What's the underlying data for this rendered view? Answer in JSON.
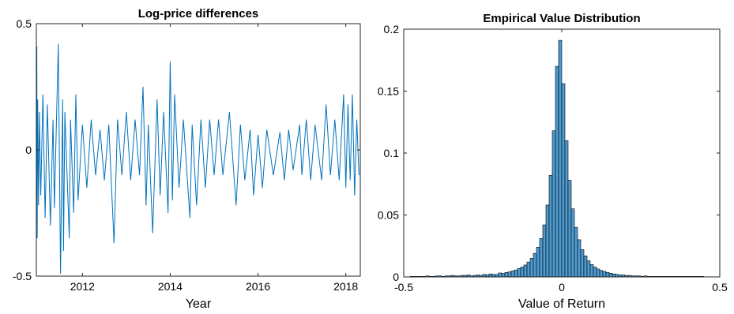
{
  "chart_data": [
    {
      "type": "line",
      "title": "Log-price differences",
      "xlabel": "Year",
      "ylabel": "",
      "xlim": [
        2010.95,
        2018.33
      ],
      "ylim": [
        -0.5,
        0.5
      ],
      "x_ticks": [
        2012,
        2014,
        2016,
        2018
      ],
      "y_ticks": [
        -0.5,
        0,
        0.5
      ],
      "x_tick_labels": [
        "2012",
        "2014",
        "2016",
        "2018"
      ],
      "y_tick_labels": [
        "-0.5",
        "0",
        "0.5"
      ],
      "grid": false,
      "color": "#0072BD",
      "series": [
        {
          "x": [
            2010.96,
            2010.97,
            2010.98,
            2011.0,
            2011.02,
            2011.05,
            2011.1,
            2011.15,
            2011.2,
            2011.27,
            2011.33,
            2011.36,
            2011.45,
            2011.5,
            2011.55,
            2011.57,
            2011.6,
            2011.7,
            2011.73,
            2011.8,
            2011.85,
            2011.9,
            2012.0,
            2012.1,
            2012.2,
            2012.3,
            2012.4,
            2012.5,
            2012.6,
            2012.72,
            2012.8,
            2012.9,
            2013.0,
            2013.1,
            2013.2,
            2013.3,
            2013.38,
            2013.45,
            2013.5,
            2013.6,
            2013.7,
            2013.77,
            2013.85,
            2013.95,
            2014.0,
            2014.05,
            2014.1,
            2014.2,
            2014.3,
            2014.45,
            2014.5,
            2014.6,
            2014.7,
            2014.8,
            2014.9,
            2015.0,
            2015.1,
            2015.2,
            2015.35,
            2015.5,
            2015.6,
            2015.7,
            2015.82,
            2015.9,
            2016.0,
            2016.1,
            2016.2,
            2016.35,
            2016.5,
            2016.6,
            2016.7,
            2016.8,
            2016.95,
            2017.0,
            2017.1,
            2017.2,
            2017.3,
            2017.45,
            2017.55,
            2017.65,
            2017.75,
            2017.85,
            2017.95,
            2018.0,
            2018.05,
            2018.1,
            2018.15,
            2018.2,
            2018.25,
            2018.3
          ],
          "y": [
            0.41,
            -0.35,
            0.2,
            -0.22,
            0.15,
            -0.18,
            0.22,
            -0.27,
            0.18,
            -0.3,
            0.12,
            -0.23,
            0.42,
            -0.49,
            0.2,
            -0.4,
            0.15,
            -0.35,
            0.12,
            -0.25,
            0.22,
            -0.2,
            0.1,
            -0.15,
            0.12,
            -0.1,
            0.08,
            -0.12,
            0.1,
            -0.37,
            0.12,
            -0.1,
            0.15,
            -0.12,
            0.12,
            -0.1,
            0.25,
            -0.22,
            0.1,
            -0.33,
            0.2,
            -0.18,
            0.15,
            -0.25,
            0.35,
            -0.2,
            0.22,
            -0.15,
            0.12,
            -0.27,
            0.1,
            -0.22,
            0.12,
            -0.15,
            0.12,
            -0.1,
            0.12,
            -0.1,
            0.15,
            -0.22,
            0.1,
            -0.12,
            0.08,
            -0.18,
            0.06,
            -0.15,
            0.08,
            -0.1,
            0.07,
            -0.12,
            0.08,
            -0.08,
            0.1,
            -0.1,
            0.12,
            -0.12,
            0.1,
            -0.12,
            0.18,
            -0.1,
            0.12,
            -0.12,
            0.22,
            -0.15,
            0.18,
            -0.12,
            0.22,
            -0.18,
            0.12,
            -0.1
          ]
        }
      ]
    },
    {
      "type": "bar",
      "title": "Empirical Value Distribution",
      "xlabel": "Value of Return",
      "ylabel": "",
      "xlim": [
        -0.5,
        0.5
      ],
      "ylim": [
        0,
        0.2
      ],
      "x_ticks": [
        -0.5,
        0,
        0.5
      ],
      "y_ticks": [
        0,
        0.05,
        0.1,
        0.15,
        0.2
      ],
      "x_tick_labels": [
        "-0.5",
        "0",
        "0.5"
      ],
      "y_tick_labels": [
        "0",
        "0.05",
        "0.1",
        "0.15",
        "0.2"
      ],
      "bin_width": 0.01,
      "bin_start": -0.48,
      "grid": false,
      "bar_color": "#4D9BD1",
      "values": [
        0.0004,
        0.0004,
        0.0004,
        0.0004,
        0.0004,
        0.0008,
        0.0004,
        0.0004,
        0.0008,
        0.0008,
        0.0004,
        0.0008,
        0.0008,
        0.0012,
        0.0008,
        0.0008,
        0.0012,
        0.0012,
        0.0016,
        0.0008,
        0.0012,
        0.0016,
        0.0012,
        0.002,
        0.0016,
        0.0024,
        0.002,
        0.002,
        0.0032,
        0.0028,
        0.0036,
        0.004,
        0.0048,
        0.0056,
        0.0068,
        0.008,
        0.0096,
        0.012,
        0.015,
        0.019,
        0.024,
        0.031,
        0.042,
        0.058,
        0.082,
        0.118,
        0.17,
        0.191,
        0.156,
        0.11,
        0.078,
        0.055,
        0.04,
        0.03,
        0.022,
        0.017,
        0.013,
        0.01,
        0.008,
        0.0064,
        0.0052,
        0.0044,
        0.0036,
        0.003,
        0.0024,
        0.002,
        0.0016,
        0.0016,
        0.0012,
        0.0012,
        0.0008,
        0.0008,
        0.0008,
        0.0004,
        0.0008,
        0.0004,
        0.0004,
        0.0004,
        0.0004,
        0.0004,
        0.0004,
        0.0004,
        0.0004,
        0.0004,
        0.0004,
        0.0004,
        0.0004,
        0.0004,
        0.0004,
        0.0004,
        0.0004,
        0.0004,
        0.0004
      ]
    }
  ]
}
